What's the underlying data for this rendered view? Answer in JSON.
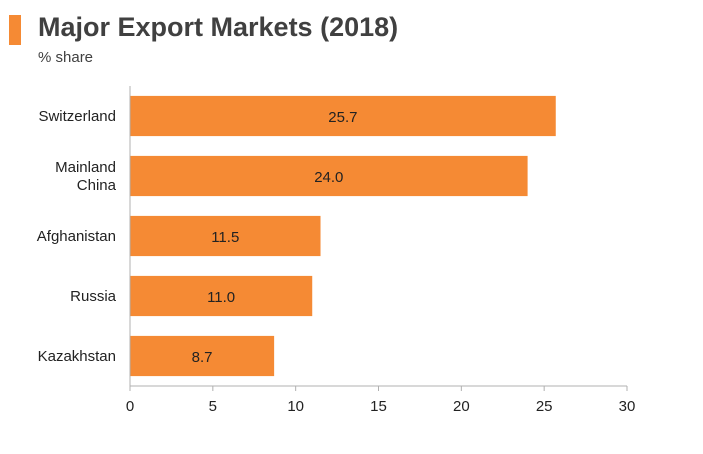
{
  "title": "Major Export Markets (2018)",
  "subtitle": "% share",
  "colors": {
    "bar": "#F58A34",
    "accent": "#F58A34",
    "axis": "#B0B0B0",
    "text": "#222222"
  },
  "chart_data": {
    "type": "bar",
    "orientation": "horizontal",
    "title": "Major Export Markets (2018)",
    "subtitle": "% share",
    "categories": [
      "Switzerland",
      "Mainland China",
      "Afghanistan",
      "Russia",
      "Kazakhstan"
    ],
    "category_lines": [
      [
        "Switzerland"
      ],
      [
        "Mainland",
        "China"
      ],
      [
        "Afghanistan"
      ],
      [
        "Russia"
      ],
      [
        "Kazakhstan"
      ]
    ],
    "values": [
      25.7,
      24.0,
      11.5,
      11.0,
      8.7
    ],
    "value_labels": [
      "25.7",
      "24.0",
      "11.5",
      "11.0",
      "8.7"
    ],
    "xlim": [
      0,
      30
    ],
    "xticks": [
      0,
      5,
      10,
      15,
      20,
      25,
      30
    ],
    "grid": false,
    "legend": "none"
  }
}
